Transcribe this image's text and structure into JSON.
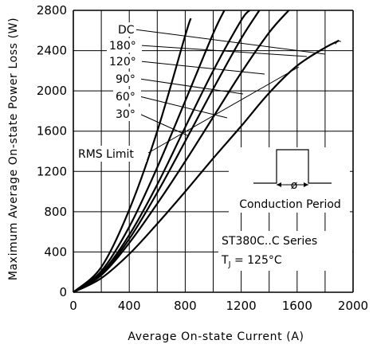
{
  "chart_data": {
    "type": "line",
    "xlabel": "Average On-state Current (A)",
    "ylabel": "Maximum Average On-state Power Loss (W)",
    "xlim": [
      0,
      2000
    ],
    "ylim": [
      0,
      2800
    ],
    "x_ticks": [
      "0",
      "400",
      "800",
      "1200",
      "1600",
      "2000"
    ],
    "y_ticks": [
      "0",
      "400",
      "800",
      "1200",
      "1600",
      "2000",
      "2400",
      "2800"
    ],
    "grid": true,
    "series": [
      {
        "name": "30°",
        "x": [
          0,
          200,
          400,
          600,
          800,
          840
        ],
        "y": [
          0,
          250,
          820,
          1600,
          2550,
          2720
        ]
      },
      {
        "name": "60°",
        "x": [
          0,
          200,
          400,
          600,
          800,
          1000,
          1080
        ],
        "y": [
          0,
          210,
          650,
          1240,
          1900,
          2570,
          2800
        ]
      },
      {
        "name": "90°",
        "x": [
          0,
          200,
          400,
          600,
          800,
          1000,
          1200,
          1260
        ],
        "y": [
          0,
          190,
          570,
          1070,
          1640,
          2200,
          2700,
          2800
        ]
      },
      {
        "name": "120°",
        "x": [
          0,
          200,
          400,
          600,
          800,
          1000,
          1200,
          1330
        ],
        "y": [
          0,
          180,
          530,
          990,
          1500,
          2020,
          2520,
          2800
        ]
      },
      {
        "name": "180°",
        "x": [
          0,
          200,
          400,
          600,
          800,
          1000,
          1200,
          1400,
          1540
        ],
        "y": [
          0,
          170,
          490,
          880,
          1300,
          1740,
          2180,
          2580,
          2800
        ]
      },
      {
        "name": "DC",
        "x": [
          0,
          200,
          400,
          600,
          800,
          1000,
          1200,
          1400,
          1600,
          1800,
          1900
        ],
        "y": [
          0,
          140,
          380,
          680,
          1000,
          1330,
          1650,
          1980,
          2250,
          2430,
          2500
        ]
      }
    ],
    "rms_limit": {
      "label": "RMS Limit",
      "x": 1890,
      "y": 2480
    },
    "annotations": {
      "conduction_period": "Conduction Period",
      "symbol": "ø",
      "series_title": "ST380C..C Series",
      "tj_line": "TJ = 125°C"
    }
  }
}
